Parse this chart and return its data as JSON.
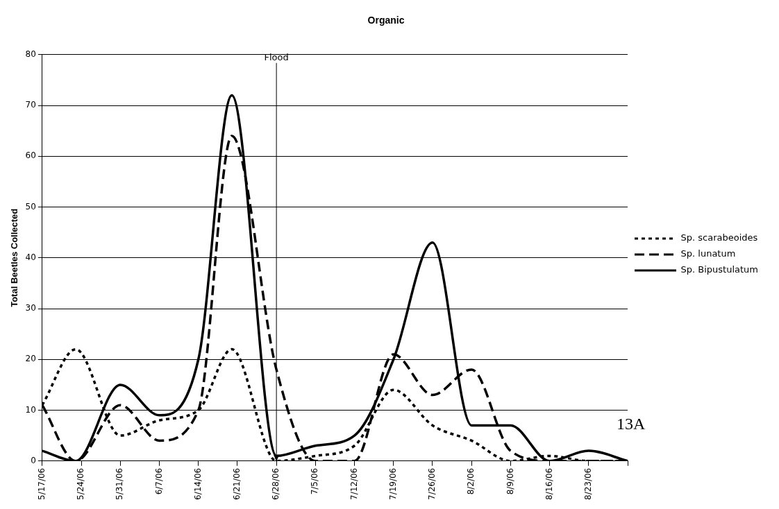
{
  "chart_data": {
    "type": "line",
    "title": "Organic",
    "ylabel": "Total Beetles Collected",
    "x": [
      "--05-17",
      "--05-23",
      "--05-31",
      "--06-07",
      "--06-14",
      "--06-20",
      "--06-28",
      "--07-05",
      "--07-12",
      "--07-19",
      "--07-26",
      "--08-02",
      "--08-09",
      "--08-16",
      "--08-23",
      "--08-30"
    ],
    "series": [
      {
        "name": "Sp. scarabeoides",
        "color": "#000000",
        "line_style": "dotted",
        "values": [
          11,
          22,
          5,
          8,
          10,
          22,
          0,
          1,
          3,
          14,
          7,
          4,
          0,
          1,
          0,
          0
        ]
      },
      {
        "name": "Sp. lunatum",
        "color": "#000000",
        "line_style": "dashed",
        "values": [
          11,
          0,
          11,
          4,
          10,
          64,
          18,
          0,
          0,
          21,
          13,
          18,
          2,
          0,
          0,
          0
        ]
      },
      {
        "name": "Sp. Bipustulatum",
        "color": "#000000",
        "line_style": "solid",
        "values": [
          2,
          0,
          15,
          9,
          20,
          72,
          1,
          3,
          5,
          20,
          43,
          7,
          7,
          0,
          2,
          0
        ]
      }
    ],
    "xlim": [
      "--05-17",
      "--08-30"
    ],
    "xticks": [
      {
        "value": "--05-17",
        "label": "5/17/06"
      },
      {
        "value": "--05-24",
        "label": "5/24/06"
      },
      {
        "value": "--05-31",
        "label": "5/31/06"
      },
      {
        "value": "--06-07",
        "label": "6/7/06"
      },
      {
        "value": "--06-14",
        "label": "6/14/06"
      },
      {
        "value": "--06-21",
        "label": "6/21/06"
      },
      {
        "value": "--06-28",
        "label": "6/28/06"
      },
      {
        "value": "--07-05",
        "label": "7/5/06"
      },
      {
        "value": "--07-12",
        "label": "7/12/06"
      },
      {
        "value": "--07-19",
        "label": "7/19/06"
      },
      {
        "value": "--07-26",
        "label": "7/26/06"
      },
      {
        "value": "--08-02",
        "label": "8/2/06"
      },
      {
        "value": "--08-09",
        "label": "8/9/06"
      },
      {
        "value": "--08-16",
        "label": "8/16/06"
      },
      {
        "value": "--08-23",
        "label": "8/23/06"
      },
      {
        "value": "--08-30",
        "label": null
      }
    ],
    "ylim": [
      0,
      80
    ],
    "yticks": [
      0,
      10,
      20,
      30,
      40,
      50,
      60,
      70,
      80
    ],
    "grid": "y",
    "legend": "right",
    "marker": "none",
    "ref_lines": [
      {
        "axis": "x",
        "value": "--06-28",
        "label": "Flood",
        "color": "#000000"
      }
    ],
    "annotations": [
      "13A"
    ]
  }
}
